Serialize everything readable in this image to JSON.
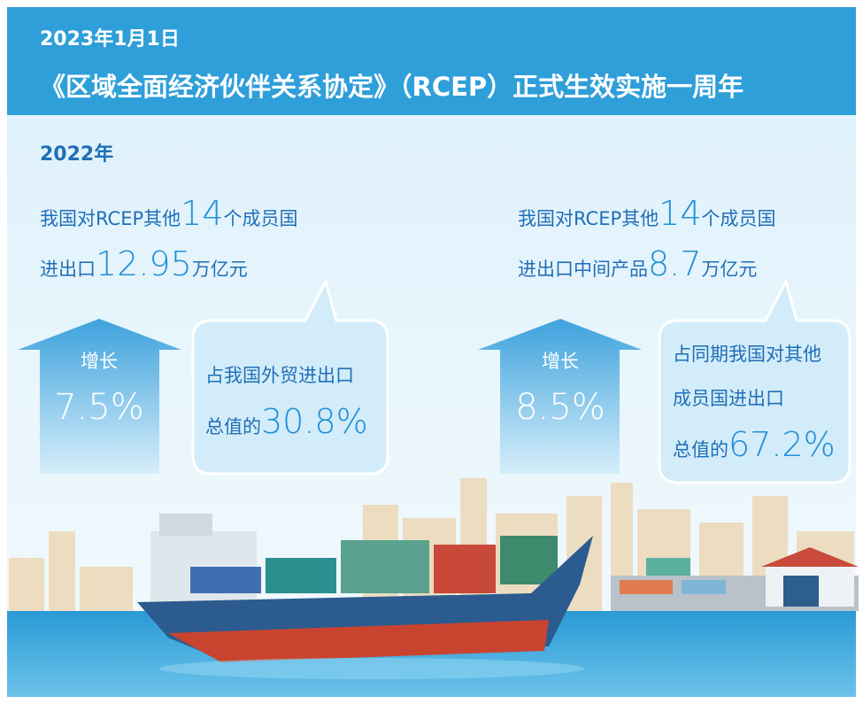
{
  "header": {
    "date": "2023年1月1日",
    "title": "《区域全面经济伙伴关系协定》（RCEP）正式生效实施一周年"
  },
  "year": "2022年",
  "left": {
    "line1": {
      "before": "我国对RCEP其他",
      "big": "14",
      "after": "个成员国"
    },
    "line2": {
      "before": "进出口",
      "big": "12.95",
      "after": "万亿元"
    },
    "arrow": {
      "label": "增长",
      "value": "7.5%"
    },
    "bubble": {
      "line1": "占我国外贸进出口",
      "line2_before": "总值的",
      "line2_big": "30.8%"
    }
  },
  "right": {
    "line1": {
      "before": "我国对RCEP其他",
      "big": "14",
      "after": "个成员国"
    },
    "line2": {
      "before": "进出口中间产品",
      "big": "8.7",
      "after": "万亿元"
    },
    "arrow": {
      "label": "增长",
      "value": "8.5%"
    },
    "bubble": {
      "line1": "占同期我国对其他",
      "line2": "成员国进出口",
      "line3_before": "总值的",
      "line3_big": "67.2%"
    }
  }
}
